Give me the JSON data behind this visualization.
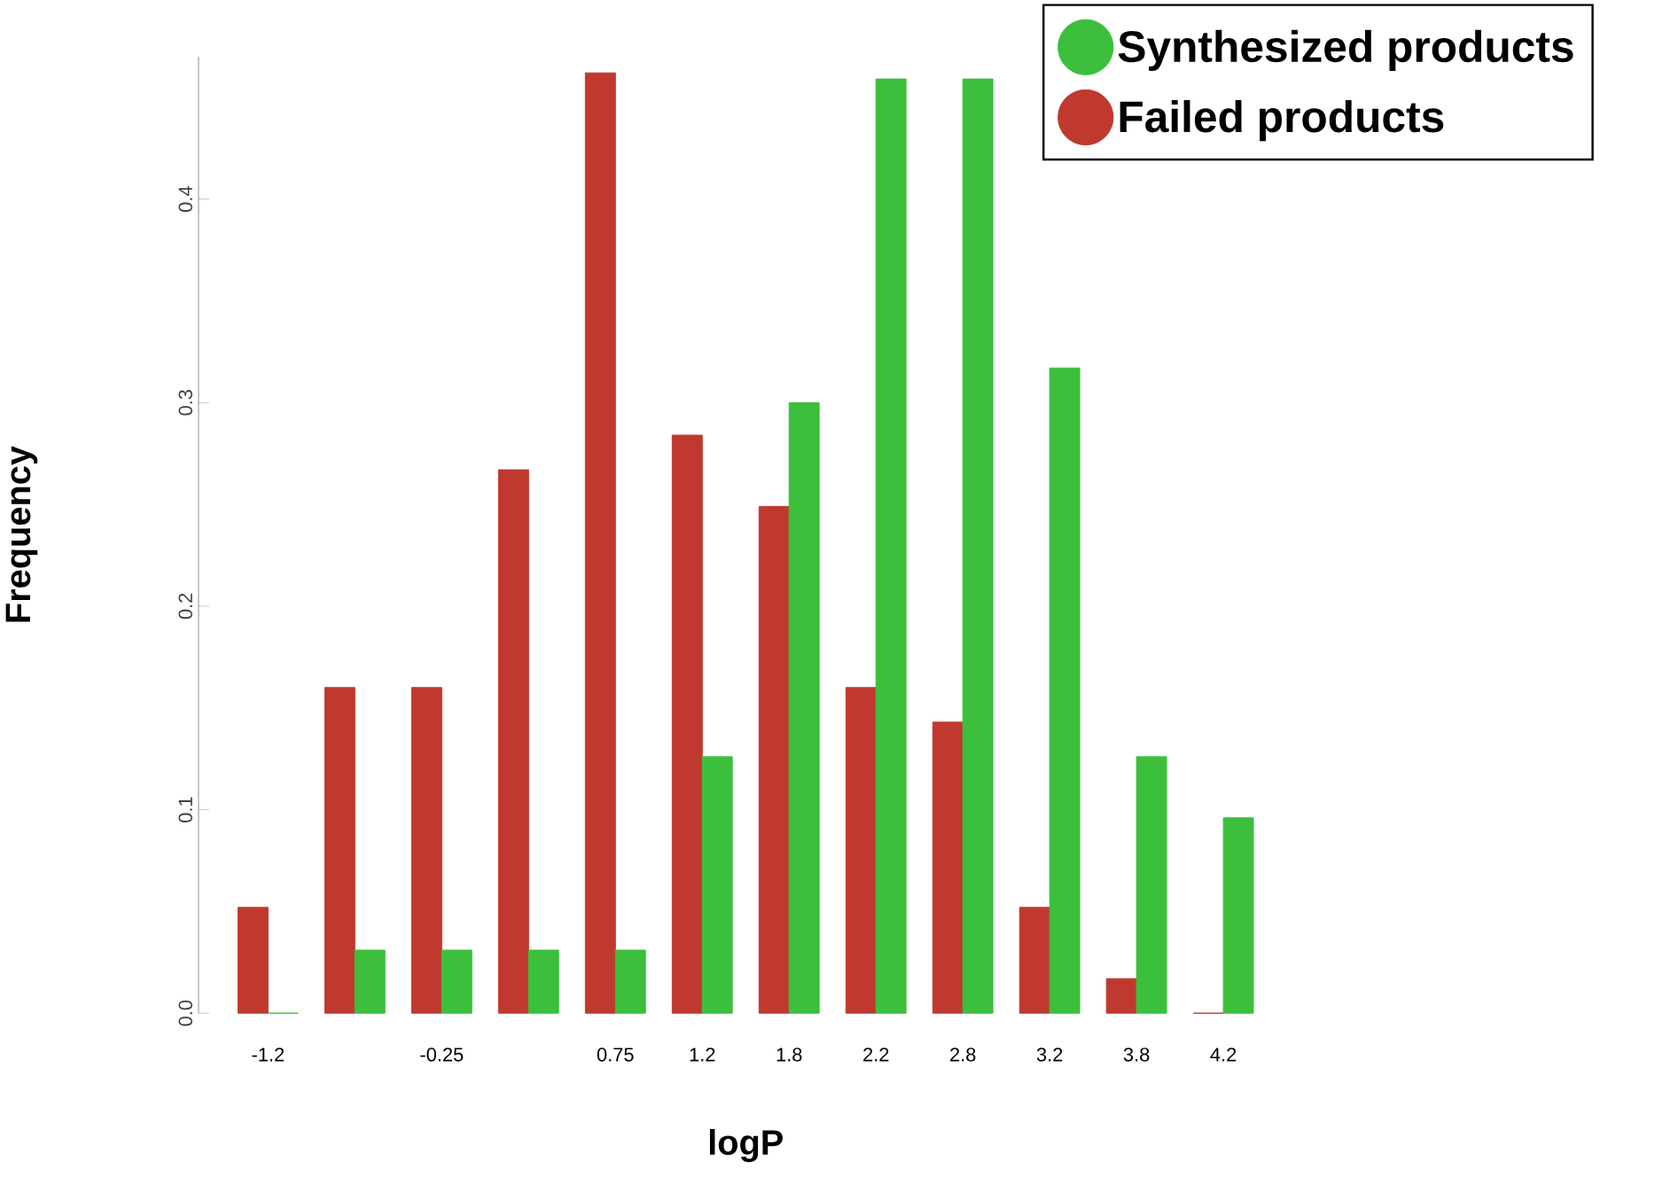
{
  "chart_data": {
    "type": "bar",
    "xlabel": "logP",
    "ylabel": "Frequency",
    "categories": [
      "-1.2",
      null,
      "-0.25",
      null,
      "0.75",
      "1.2",
      "1.8",
      "2.2",
      "2.8",
      "3.2",
      "3.8",
      "4.2"
    ],
    "series": [
      {
        "name": "Failed products",
        "color": "#c0392f",
        "values": [
          0.052,
          0.16,
          0.16,
          0.267,
          0.462,
          0.284,
          0.249,
          0.16,
          0.143,
          0.052,
          0.017,
          0
        ]
      },
      {
        "name": "Synthesized products",
        "color": "#3cbf3c",
        "values": [
          0,
          0.031,
          0.031,
          0.031,
          0.031,
          0.126,
          0.3,
          0.459,
          0.459,
          0.317,
          0.126,
          0.096
        ]
      }
    ],
    "ylim": [
      0,
      0.47
    ],
    "yticks": [
      {
        "value": 0,
        "label": "0.0"
      },
      0.1,
      0.2,
      0.3,
      0.4
    ],
    "legend": "top right",
    "grid": false
  }
}
